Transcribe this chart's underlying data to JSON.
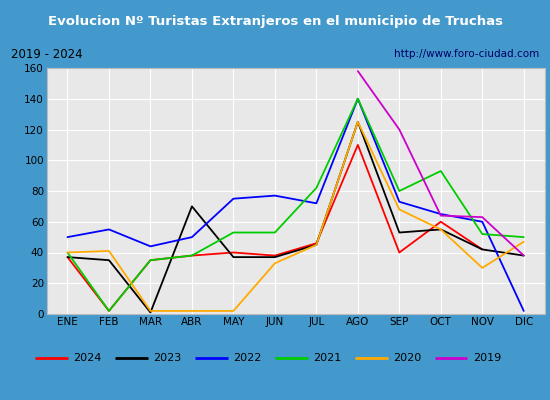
{
  "title": "Evolucion Nº Turistas Extranjeros en el municipio de Truchas",
  "subtitle_left": "2019 - 2024",
  "subtitle_right": "http://www.foro-ciudad.com",
  "months": [
    "ENE",
    "FEB",
    "MAR",
    "ABR",
    "MAY",
    "JUN",
    "JUL",
    "AGO",
    "SEP",
    "OCT",
    "NOV",
    "DIC"
  ],
  "series": {
    "2024": [
      37,
      2,
      35,
      38,
      40,
      38,
      46,
      110,
      40,
      60,
      42,
      null
    ],
    "2023": [
      37,
      35,
      1,
      70,
      37,
      37,
      45,
      125,
      53,
      55,
      42,
      38
    ],
    "2022": [
      50,
      55,
      44,
      50,
      75,
      77,
      72,
      140,
      73,
      65,
      60,
      2
    ],
    "2021": [
      40,
      2,
      35,
      38,
      53,
      53,
      82,
      140,
      80,
      93,
      52,
      50
    ],
    "2020": [
      40,
      41,
      2,
      2,
      2,
      33,
      45,
      125,
      68,
      55,
      30,
      47
    ],
    "2019": [
      null,
      null,
      null,
      null,
      null,
      null,
      null,
      158,
      120,
      64,
      63,
      38
    ]
  },
  "colors": {
    "2024": "#ff0000",
    "2023": "#000000",
    "2022": "#0000ff",
    "2021": "#00cc00",
    "2020": "#ffaa00",
    "2019": "#cc00cc"
  },
  "ylim": [
    0,
    160
  ],
  "yticks": [
    0,
    20,
    40,
    60,
    80,
    100,
    120,
    140,
    160
  ],
  "title_bg": "#4499cc",
  "title_color": "#ffffff",
  "subtitle_bg": "#e8e8e8",
  "chart_bg": "#e8e8e8",
  "grid_color": "#ffffff",
  "outer_bg": "#4499cc",
  "legend_border": "#aaaaaa"
}
